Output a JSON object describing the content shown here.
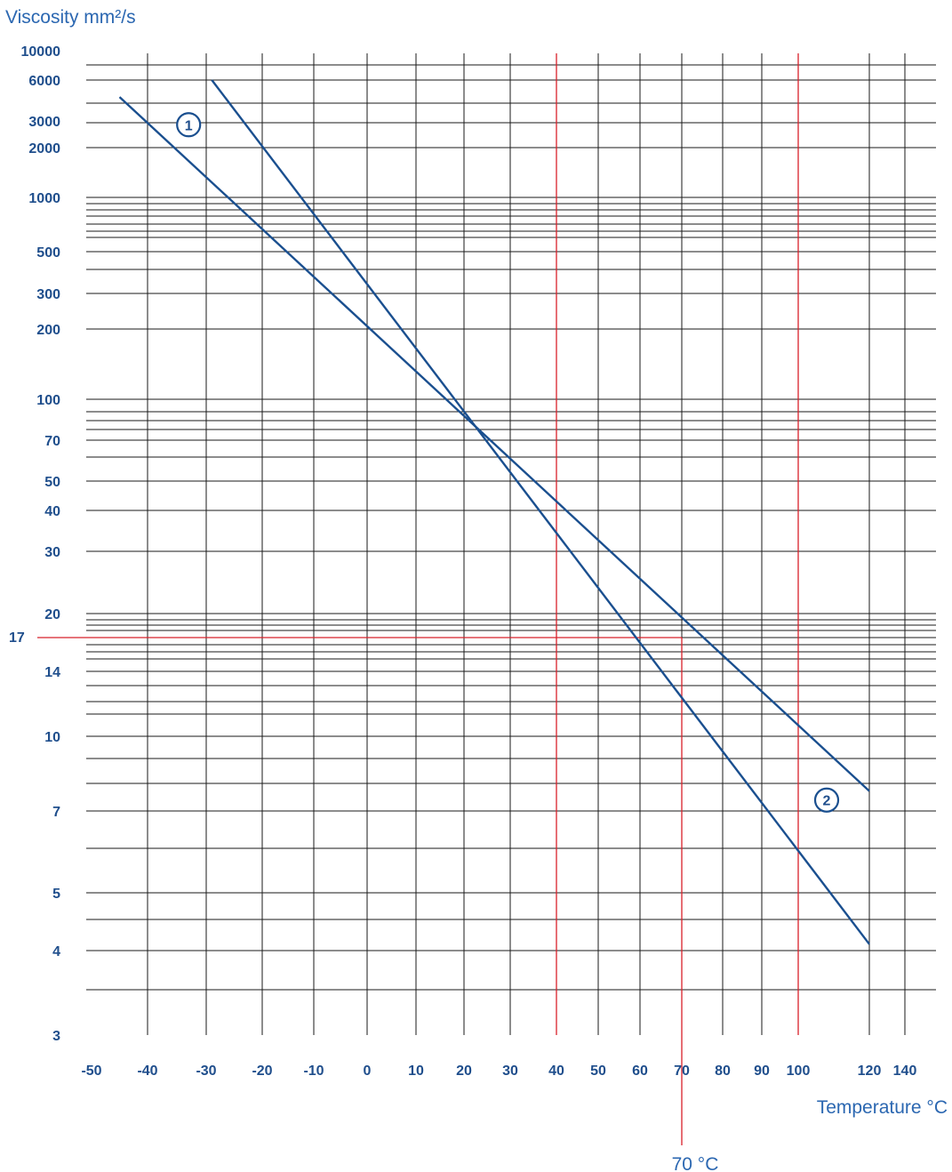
{
  "chart_data": {
    "type": "line",
    "ylabel": "Viscosity mm²/s",
    "xlabel": "Temperature °C",
    "yscale": "log",
    "ylim": [
      3,
      10000
    ],
    "xlim": [
      -50,
      140
    ],
    "grid": true,
    "y_tick_labels": [
      "10000",
      "6000",
      "3000",
      "2000",
      "1000",
      "500",
      "300",
      "200",
      "100",
      "70",
      "50",
      "40",
      "30",
      "20",
      "17",
      "14",
      "10",
      "7",
      "5",
      "4",
      "3"
    ],
    "x_tick_labels": [
      "-50",
      "-40",
      "-30",
      "-20",
      "-10",
      "0",
      "10",
      "20",
      "30",
      "40",
      "50",
      "60",
      "70",
      "80",
      "90",
      "100",
      "120",
      "140"
    ],
    "series": [
      {
        "name": "1",
        "x": [
          -45,
          120
        ],
        "y": [
          4500,
          7.7
        ]
      },
      {
        "name": "2",
        "x": [
          -29,
          120
        ],
        "y": [
          6000,
          4.1
        ]
      }
    ],
    "reference_lines": {
      "vertical_x": [
        40,
        70,
        100
      ],
      "horizontal_y": 17,
      "horizontal_label": "17",
      "caption": "70 °C"
    },
    "colors": {
      "series": "#1a4f8f",
      "reference": "#d8202a",
      "grid": "#1a1a1a",
      "text": "#1f4e8c"
    }
  }
}
